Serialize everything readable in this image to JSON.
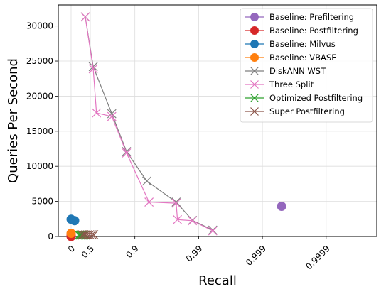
{
  "chart_data": {
    "type": "scatter",
    "xlabel": "Recall",
    "ylabel": "Queries Per Second",
    "x_scale": "logit-like (-log10(1 - recall))",
    "x_ticks": [
      {
        "value": 0,
        "label": "0"
      },
      {
        "value": 0.5,
        "label": "0.5"
      },
      {
        "value": 0.9,
        "label": "0.9"
      },
      {
        "value": 0.99,
        "label": "0.99"
      },
      {
        "value": 0.999,
        "label": "0.999"
      },
      {
        "value": 0.9999,
        "label": "0.9999"
      }
    ],
    "ylim": [
      0,
      33000
    ],
    "y_ticks": [
      0,
      5000,
      10000,
      15000,
      20000,
      25000,
      30000
    ],
    "grid": true,
    "legend_position": "top-right",
    "series": [
      {
        "name": "Baseline: Prefiltering",
        "color": "#9467bd",
        "marker": "circle",
        "line": false,
        "points": [
          [
            0.9995,
            4300
          ]
        ]
      },
      {
        "name": "Baseline: Postfiltering",
        "color": "#d62728",
        "marker": "circle",
        "line": false,
        "points": [
          [
            0.0,
            150
          ],
          [
            0.0,
            0
          ]
        ]
      },
      {
        "name": "Baseline: Milvus",
        "color": "#1f77b4",
        "marker": "circle",
        "line": false,
        "points": [
          [
            0.0,
            2450
          ],
          [
            0.12,
            2250
          ]
        ]
      },
      {
        "name": "Baseline: VBASE",
        "color": "#ff7f0e",
        "marker": "circle",
        "line": false,
        "points": [
          [
            0.0,
            450
          ]
        ]
      },
      {
        "name": "DiskANN WST",
        "color": "#7f7f7f",
        "marker": "x",
        "line": true,
        "points": [
          [
            0.4,
            31300
          ],
          [
            0.55,
            24200
          ],
          [
            0.77,
            17500
          ],
          [
            0.865,
            12100
          ],
          [
            0.935,
            7900
          ],
          [
            0.9775,
            4900
          ],
          [
            0.9875,
            2300
          ],
          [
            0.994,
            900
          ]
        ]
      },
      {
        "name": "Three Split",
        "color": "#e377c2",
        "marker": "x",
        "line": true,
        "points": [
          [
            0.4,
            31300
          ],
          [
            0.55,
            23900
          ],
          [
            0.6,
            17600
          ],
          [
            0.77,
            17100
          ],
          [
            0.865,
            11900
          ],
          [
            0.94,
            4900
          ],
          [
            0.9775,
            4750
          ],
          [
            0.9785,
            2400
          ],
          [
            0.9875,
            2250
          ],
          [
            0.994,
            800
          ]
        ]
      },
      {
        "name": "Optimized Postfiltering",
        "color": "#2ca02c",
        "marker": "x",
        "line": false,
        "points": [
          [
            0.25,
            200
          ],
          [
            0.28,
            200
          ],
          [
            0.31,
            200
          ],
          [
            0.34,
            200
          ],
          [
            0.37,
            200
          ],
          [
            0.4,
            200
          ]
        ]
      },
      {
        "name": "Super Postfiltering",
        "color": "#8c564b",
        "marker": "x",
        "line": false,
        "points": [
          [
            0.33,
            250
          ],
          [
            0.37,
            250
          ],
          [
            0.41,
            250
          ],
          [
            0.45,
            250
          ],
          [
            0.49,
            250
          ],
          [
            0.53,
            250
          ],
          [
            0.56,
            250
          ]
        ]
      }
    ]
  }
}
